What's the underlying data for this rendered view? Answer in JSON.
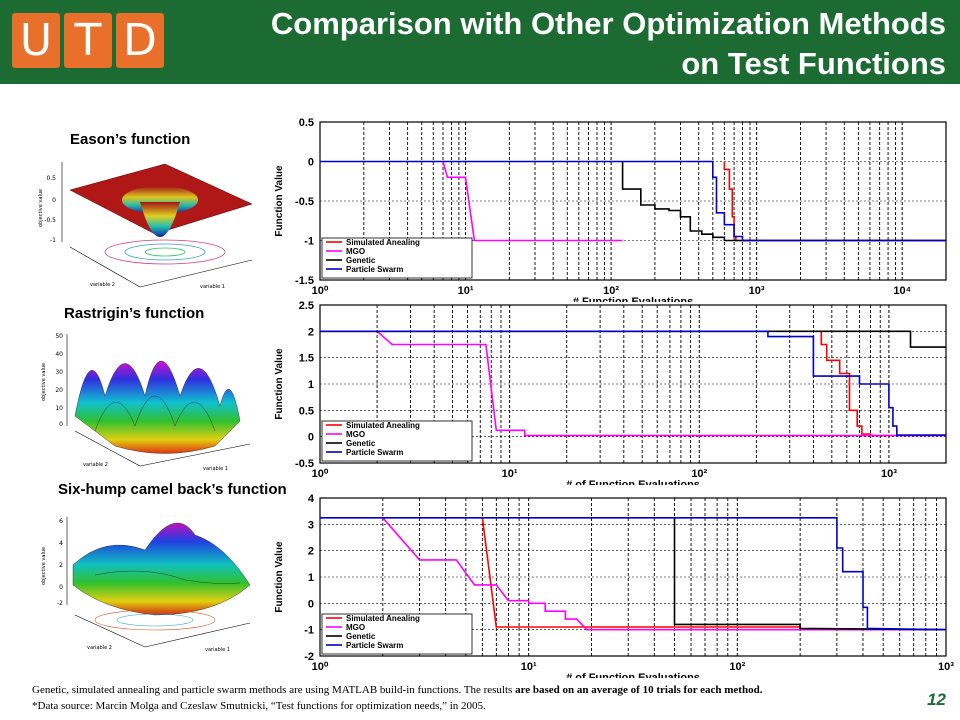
{
  "header": {
    "logo_letters": [
      "U",
      "T",
      "D"
    ],
    "title_line1": "Comparison with Other Optimization Methods",
    "title_line2": "on Test Functions",
    "bg_color": "#1c6b33",
    "logo_color": "#e8702a"
  },
  "functions": [
    {
      "label": "Eason’s function",
      "zlabel": "objective value",
      "xlabel": "variable 1",
      "ylabel": "variable 2"
    },
    {
      "label": "Rastrigin’s function",
      "zlabel": "objective value",
      "xlabel": "variable 1",
      "ylabel": "variable 2"
    },
    {
      "label": "Six-hump camel back’s function",
      "zlabel": "objective value",
      "xlabel": "variable 1",
      "ylabel": "variable 2"
    }
  ],
  "chart_data": [
    {
      "type": "line",
      "xscale": "log",
      "xlim": [
        1,
        20000
      ],
      "ylim": [
        -1.5,
        0.5
      ],
      "yticks": [
        0.5,
        0,
        -0.5,
        -1,
        -1.5
      ],
      "yticklabels": [
        "0.5",
        "0",
        "-0.5",
        "-1",
        "-1.5"
      ],
      "xticks": [
        1,
        10,
        100,
        1000,
        10000
      ],
      "xticklabels": [
        "10⁰",
        "10¹",
        "10²",
        "10³",
        "10⁴"
      ],
      "xlabel": "# Function Evaluations",
      "ylabel": "Function Value",
      "grid": true,
      "legend_position": "bottom-left",
      "series": [
        {
          "name": "Simulated Anealing",
          "color": "#ff0000",
          "points": [
            [
              600,
              0
            ],
            [
              600,
              -0.1
            ],
            [
              650,
              -0.1
            ],
            [
              650,
              -0.35
            ],
            [
              680,
              -0.35
            ],
            [
              680,
              -0.7
            ],
            [
              700,
              -0.7
            ],
            [
              700,
              -0.95
            ],
            [
              720,
              -0.95
            ],
            [
              720,
              -1
            ],
            [
              20000,
              -1
            ]
          ]
        },
        {
          "name": "MGO",
          "color": "#ff00ff",
          "points": [
            [
              7,
              0
            ],
            [
              7.5,
              -0.2
            ],
            [
              10,
              -0.2
            ],
            [
              11.5,
              -1
            ],
            [
              120,
              -1
            ]
          ]
        },
        {
          "name": "Genetic",
          "color": "#000000",
          "points": [
            [
              120,
              0
            ],
            [
              120,
              -0.35
            ],
            [
              160,
              -0.35
            ],
            [
              160,
              -0.55
            ],
            [
              200,
              -0.55
            ],
            [
              200,
              -0.6
            ],
            [
              250,
              -0.6
            ],
            [
              250,
              -0.62
            ],
            [
              300,
              -0.62
            ],
            [
              300,
              -0.7
            ],
            [
              350,
              -0.7
            ],
            [
              350,
              -0.88
            ],
            [
              420,
              -0.88
            ],
            [
              420,
              -0.92
            ],
            [
              500,
              -0.92
            ],
            [
              500,
              -0.96
            ],
            [
              600,
              -0.96
            ],
            [
              600,
              -1
            ],
            [
              20000,
              -1
            ]
          ]
        },
        {
          "name": "Particle Swarm",
          "color": "#0000cc",
          "points": [
            [
              1,
              0
            ],
            [
              500,
              0
            ],
            [
              500,
              -0.2
            ],
            [
              530,
              -0.2
            ],
            [
              530,
              -0.65
            ],
            [
              600,
              -0.65
            ],
            [
              600,
              -0.8
            ],
            [
              700,
              -0.8
            ],
            [
              700,
              -0.95
            ],
            [
              800,
              -0.95
            ],
            [
              800,
              -1
            ],
            [
              20000,
              -1
            ]
          ]
        }
      ]
    },
    {
      "type": "line",
      "xscale": "log",
      "xlim": [
        1,
        2000
      ],
      "ylim": [
        -0.5,
        2.5
      ],
      "yticks": [
        2.5,
        2,
        1.5,
        1,
        0.5,
        0,
        -0.5
      ],
      "yticklabels": [
        "2.5",
        "2",
        "1.5",
        "1",
        "0.5",
        "0",
        "-0.5"
      ],
      "xticks": [
        1,
        10,
        100,
        1000
      ],
      "xticklabels": [
        "10⁰",
        "10¹",
        "10²",
        "10³"
      ],
      "xlabel": "# of Function Evaluations",
      "ylabel": "Function Value",
      "grid": true,
      "legend_position": "bottom-left",
      "series": [
        {
          "name": "Simulated Anealing",
          "color": "#ff0000",
          "points": [
            [
              440,
              2
            ],
            [
              440,
              1.75
            ],
            [
              470,
              1.75
            ],
            [
              470,
              1.45
            ],
            [
              550,
              1.45
            ],
            [
              550,
              1.2
            ],
            [
              620,
              1.2
            ],
            [
              620,
              0.5
            ],
            [
              680,
              0.5
            ],
            [
              680,
              0.2
            ],
            [
              720,
              0.2
            ],
            [
              720,
              0.05
            ],
            [
              800,
              0.05
            ],
            [
              800,
              0.02
            ],
            [
              1000,
              0.02
            ],
            [
              1000,
              0
            ]
          ]
        },
        {
          "name": "MGO",
          "color": "#ff00ff",
          "points": [
            [
              2,
              2
            ],
            [
              2.4,
              1.75
            ],
            [
              7.5,
              1.75
            ],
            [
              8.5,
              0.12
            ],
            [
              12,
              0.12
            ],
            [
              12,
              0.02
            ],
            [
              2000,
              0.02
            ]
          ]
        },
        {
          "name": "Genetic",
          "color": "#000000",
          "points": [
            [
              1,
              2
            ],
            [
              1300,
              2
            ],
            [
              1300,
              1.7
            ],
            [
              2000,
              1.7
            ]
          ]
        },
        {
          "name": "Particle Swarm",
          "color": "#0000cc",
          "points": [
            [
              1,
              2
            ],
            [
              230,
              2
            ],
            [
              230,
              1.9
            ],
            [
              400,
              1.9
            ],
            [
              400,
              1.15
            ],
            [
              700,
              1.15
            ],
            [
              700,
              1.0
            ],
            [
              1000,
              1.0
            ],
            [
              1000,
              0.55
            ],
            [
              1050,
              0.55
            ],
            [
              1050,
              0.2
            ],
            [
              1100,
              0.2
            ],
            [
              1100,
              0.03
            ],
            [
              2000,
              0.03
            ]
          ]
        }
      ]
    },
    {
      "type": "line",
      "xscale": "log",
      "xlim": [
        1,
        1000
      ],
      "ylim": [
        -2,
        4
      ],
      "yticks": [
        4,
        3,
        2,
        1,
        0,
        -1,
        -2
      ],
      "yticklabels": [
        "4",
        "3",
        "2",
        "1",
        "0",
        "-1",
        "-2"
      ],
      "xticks": [
        1,
        10,
        100,
        1000
      ],
      "xticklabels": [
        "10⁰",
        "10¹",
        "10²",
        "10³"
      ],
      "xlabel": "# of Function Evaluations",
      "ylabel": "Function Value",
      "grid": true,
      "legend_position": "bottom-left",
      "series": [
        {
          "name": "Simulated Anealing",
          "color": "#ff0000",
          "points": [
            [
              6,
              3.25
            ],
            [
              7,
              -0.9
            ],
            [
              200,
              -0.9
            ],
            [
              200,
              -0.98
            ],
            [
              1000,
              -1.0
            ]
          ]
        },
        {
          "name": "MGO",
          "color": "#ff00ff",
          "points": [
            [
              2,
              3.25
            ],
            [
              3,
              1.65
            ],
            [
              4.5,
              1.65
            ],
            [
              5.5,
              0.7
            ],
            [
              7,
              0.7
            ],
            [
              8,
              0.1
            ],
            [
              10,
              0.1
            ],
            [
              10,
              0
            ],
            [
              12,
              0
            ],
            [
              12,
              -0.3
            ],
            [
              15,
              -0.3
            ],
            [
              15,
              -0.6
            ],
            [
              17,
              -0.6
            ],
            [
              19,
              -1.0
            ],
            [
              1000,
              -1.0
            ]
          ]
        },
        {
          "name": "Genetic",
          "color": "#000000",
          "points": [
            [
              50,
              3.25
            ],
            [
              50,
              -0.8
            ],
            [
              200,
              -0.8
            ],
            [
              200,
              -0.95
            ],
            [
              1000,
              -1.0
            ]
          ]
        },
        {
          "name": "Particle Swarm",
          "color": "#0000cc",
          "points": [
            [
              1,
              3.25
            ],
            [
              300,
              3.25
            ],
            [
              300,
              2.1
            ],
            [
              320,
              2.1
            ],
            [
              320,
              1.2
            ],
            [
              400,
              1.2
            ],
            [
              400,
              -0.15
            ],
            [
              420,
              -0.15
            ],
            [
              420,
              -0.95
            ],
            [
              1000,
              -1.0
            ]
          ]
        }
      ]
    }
  ],
  "footer": {
    "line1_a": "Genetic, simulated annealing and particle swarm methods are using MATLAB build-in functions. The results ",
    "line1_b": "are based on an average of 10 trials for each method.",
    "line2": "*Data source: Marcin Molga and Czeslaw Smutnicki, “Test functions for optimization needs,” in 2005.",
    "page_number": "12"
  }
}
